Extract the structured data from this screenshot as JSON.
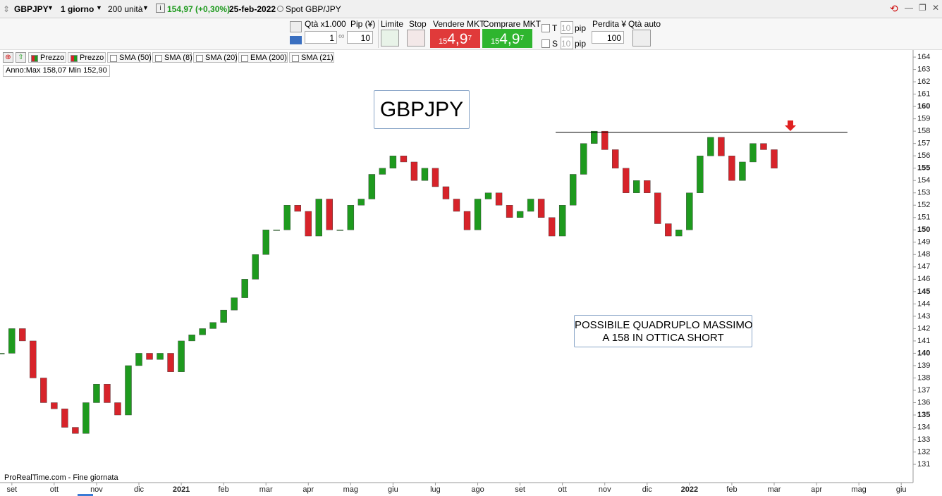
{
  "toolbar": {
    "symbol": "GBPJPY",
    "period": "1 giorno",
    "units": "200 unità",
    "price": "154,97 (+0,30%)",
    "date": "25-feb-2022",
    "instrument": "Spot GBP/JPY"
  },
  "order_bar": {
    "qty_label": "Qtà x1.000",
    "qty": "1",
    "pip_label": "Pip (¥)",
    "pip": "10",
    "limit": "Limite",
    "stop": "Stop",
    "sell_label": "Vendere MKT",
    "sell_price": [
      "15",
      "4,9",
      "7"
    ],
    "buy_label": "Comprare MKT",
    "buy_price": [
      "15",
      "4,9",
      "7"
    ],
    "t_label": "T",
    "t_value": "10",
    "t_unit": "pip",
    "s_label": "S",
    "s_value": "10",
    "s_unit": "pip",
    "loss_label": "Perdita ¥",
    "loss": "100",
    "auto_qty": "Qtà auto"
  },
  "indicators": [
    "Prezzo",
    "Prezzo",
    "SMA (50)",
    "SMA (8)",
    "SMA (20)",
    "EMA (200)",
    "SMA (21)"
  ],
  "info": "Anno:Max 158,07 Min 152,90",
  "footer": "ProRealTime.com - Fine giornata",
  "chart_data": {
    "type": "candlestick",
    "up_color": "#1e9a1e",
    "down_color": "#d7232a",
    "x": [
      -0.25,
      0,
      0.25,
      0.5,
      0.75,
      1,
      1.25,
      1.5,
      1.75,
      2,
      2.25,
      2.5,
      2.75,
      3,
      3.25,
      3.5,
      3.75,
      4,
      4.25,
      4.5,
      4.75,
      5,
      5.25,
      5.5,
      5.75,
      6,
      6.25,
      6.5,
      6.75,
      7,
      7.25,
      7.5,
      7.75,
      8,
      8.25,
      8.5,
      8.75,
      9,
      9.25,
      9.5,
      9.75,
      10,
      10.25,
      10.5,
      10.75,
      11,
      11.25,
      11.5,
      11.75,
      12,
      12.25,
      12.5,
      12.75,
      13,
      13.25,
      13.5,
      13.75,
      14,
      14.25,
      14.5,
      14.75,
      15,
      15.25,
      15.5,
      15.75,
      16,
      16.25,
      16.5,
      16.75,
      17,
      17.25,
      17.5,
      17.75,
      18
    ],
    "values": [
      140,
      142,
      141,
      138,
      136,
      135.5,
      134,
      133.5,
      136,
      137.5,
      136,
      135,
      139,
      140,
      139.5,
      140,
      138.5,
      141,
      141.5,
      142,
      142.5,
      143.5,
      144.5,
      146,
      148,
      150,
      150,
      152,
      151.5,
      149.5,
      152.5,
      150,
      150,
      152,
      152.5,
      154.5,
      155,
      156,
      155.5,
      154,
      155,
      153.5,
      152.5,
      151.5,
      150,
      152.5,
      153,
      152,
      151,
      151.5,
      152.5,
      151,
      149.5,
      152,
      154.5,
      157,
      158,
      156.5,
      155,
      153,
      154,
      153,
      150.5,
      149.5,
      150,
      153,
      156,
      157.5,
      156,
      154,
      155.5,
      157,
      156.5,
      155
    ],
    "xlim": [
      -0.28,
      21.28
    ],
    "ylim": [
      129.52,
      164.46
    ],
    "xticks": [
      {
        "value": 0,
        "label": "set"
      },
      {
        "value": 1,
        "label": "ott"
      },
      {
        "value": 2,
        "label": "nov"
      },
      {
        "value": 3,
        "label": "dic"
      },
      {
        "value": 4,
        "label": "2021"
      },
      {
        "value": 5,
        "label": "feb"
      },
      {
        "value": 6,
        "label": "mar"
      },
      {
        "value": 7,
        "label": "apr"
      },
      {
        "value": 8,
        "label": "mag"
      },
      {
        "value": 9,
        "label": "giu"
      },
      {
        "value": 10,
        "label": "lug"
      },
      {
        "value": 11,
        "label": "ago"
      },
      {
        "value": 12,
        "label": "set"
      },
      {
        "value": 13,
        "label": "ott"
      },
      {
        "value": 14,
        "label": "nov"
      },
      {
        "value": 15,
        "label": "dic"
      },
      {
        "value": 16,
        "label": "2022"
      },
      {
        "value": 17,
        "label": "feb"
      },
      {
        "value": 18,
        "label": "mar"
      },
      {
        "value": 19,
        "label": "apr"
      },
      {
        "value": 20,
        "label": "mag"
      },
      {
        "value": 21,
        "label": "giu"
      }
    ],
    "yticks": [
      131,
      132,
      133,
      134,
      135,
      136,
      137,
      138,
      139,
      140,
      141,
      142,
      143,
      144,
      145,
      146,
      147,
      148,
      149,
      150,
      151,
      152,
      153,
      154,
      155,
      156,
      157,
      158,
      159,
      160,
      161,
      162,
      163,
      164
    ],
    "resistance": {
      "value": 157.9,
      "x": [
        12.84,
        19.73
      ]
    },
    "title": "GBPJPY",
    "annotation": [
      "POSSIBILE QUADRUPLO MASSIMO",
      "A 158 IN OTTICA SHORT"
    ]
  }
}
